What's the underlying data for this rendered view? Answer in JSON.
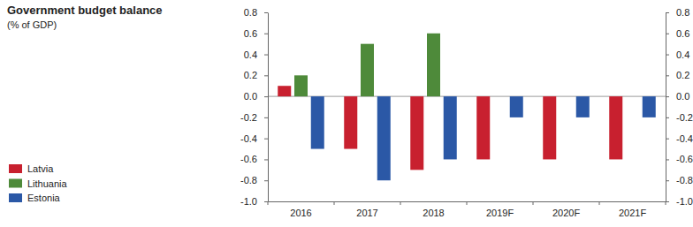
{
  "chart_data": {
    "type": "bar",
    "title": "Government budget balance",
    "subtitle": "(% of GDP)",
    "categories": [
      "2016",
      "2017",
      "2018",
      "2019F",
      "2020F",
      "2021F"
    ],
    "series": [
      {
        "name": "Latvia",
        "color": "#c8202f",
        "values": [
          0.1,
          -0.5,
          -0.7,
          -0.6,
          -0.6,
          -0.6
        ]
      },
      {
        "name": "Lithuania",
        "color": "#4e8a3a",
        "values": [
          0.2,
          0.5,
          0.6,
          null,
          null,
          null
        ]
      },
      {
        "name": "Estonia",
        "color": "#2b58a6",
        "values": [
          -0.5,
          -0.8,
          -0.6,
          -0.2,
          -0.2,
          -0.2
        ]
      }
    ],
    "ylim": [
      -1.0,
      0.8
    ],
    "yticks": [
      {
        "value": -1.0,
        "label": "-1.0"
      },
      -0.8,
      -0.6,
      -0.4,
      -0.2,
      {
        "value": 0,
        "label": "0.0"
      },
      0.2,
      0.4,
      0.6,
      0.8
    ],
    "y2lim": [
      -1.0,
      0.8
    ],
    "y2ticks": [
      {
        "value": -1.0,
        "label": "-1.0"
      },
      -0.8,
      -0.6,
      -0.4,
      -0.2,
      {
        "value": 0,
        "label": "0.0"
      },
      0.2,
      0.4,
      0.6,
      0.8
    ],
    "legend": "bottom-left"
  }
}
